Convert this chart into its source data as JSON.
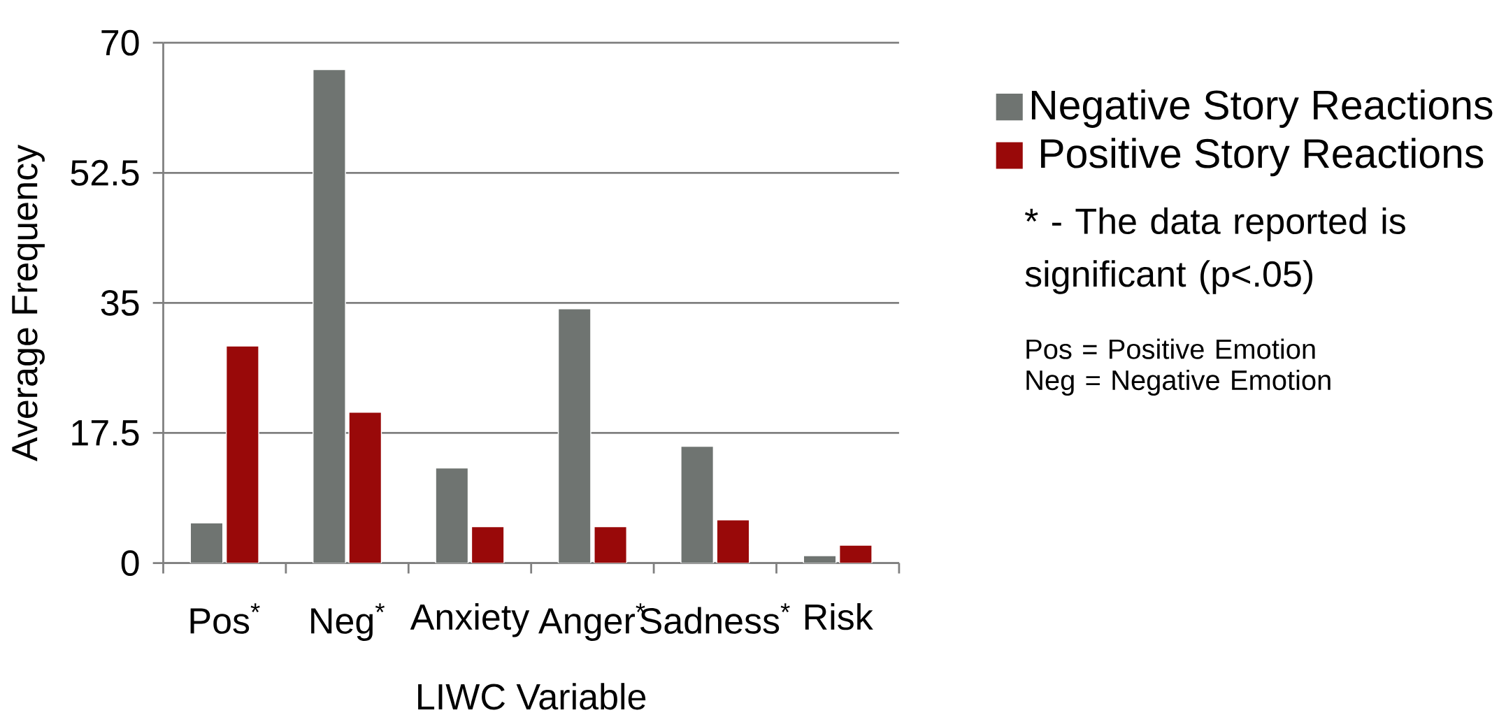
{
  "chart_data": {
    "type": "bar",
    "xlabel": "LIWC Variable",
    "ylabel": "Average Frequency",
    "categories": [
      "Pos$^{*}$",
      "Neg$^{*}$",
      "Anxiety",
      "Anger$^{*}$",
      "Sadness$^{*}$",
      "Risk"
    ],
    "series": [
      {
        "name": "Negative Story Reactions",
        "color": "#6f7471",
        "values": [
          5.4,
          66.4,
          12.8,
          34.2,
          15.7,
          1.0
        ]
      },
      {
        "name": "Positive Story Reactions",
        "color": "#990909",
        "values": [
          29.2,
          20.3,
          4.9,
          4.9,
          5.8,
          2.4
        ]
      }
    ],
    "ylim": [
      0,
      70
    ],
    "yticks": [
      0,
      17.5,
      35,
      52.5,
      70
    ],
    "grid": "y",
    "legend": "right",
    "annotations": [
      "* - The data reported is significant (p<.05)",
      "Pos = Positive Emotion",
      "Neg = Negative Emotion"
    ]
  }
}
